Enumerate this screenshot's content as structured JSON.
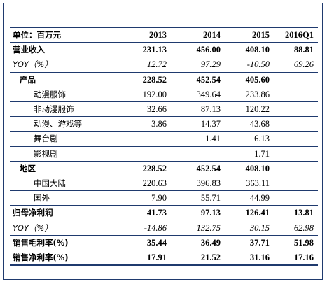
{
  "header": {
    "unit": "单位：百万元",
    "cols": [
      "2013",
      "2014",
      "2015",
      "2016Q1"
    ]
  },
  "rows": [
    {
      "label": "营业收入",
      "v": [
        "231.13",
        "456.00",
        "408.10",
        "88.81"
      ]
    },
    {
      "label": "YOY（%）",
      "v": [
        "12.72",
        "97.29",
        "-10.50",
        "69.26"
      ]
    },
    {
      "label": "产品",
      "v": [
        "228.52",
        "452.54",
        "405.60",
        ""
      ]
    },
    {
      "label": "动漫服饰",
      "v": [
        "192.00",
        "349.64",
        "233.86",
        ""
      ]
    },
    {
      "label": "非动漫服饰",
      "v": [
        "32.66",
        "87.13",
        "120.22",
        ""
      ]
    },
    {
      "label": "动漫、游戏等",
      "v": [
        "3.86",
        "14.37",
        "43.68",
        ""
      ]
    },
    {
      "label": "舞台剧",
      "v": [
        "",
        "1.41",
        "6.13",
        ""
      ]
    },
    {
      "label": "影视剧",
      "v": [
        "",
        "",
        "1.71",
        ""
      ]
    },
    {
      "label": "地区",
      "v": [
        "228.52",
        "452.54",
        "408.10",
        ""
      ]
    },
    {
      "label": "中国大陆",
      "v": [
        "220.63",
        "396.83",
        "363.11",
        ""
      ]
    },
    {
      "label": "国外",
      "v": [
        "7.90",
        "55.71",
        "44.99",
        ""
      ]
    },
    {
      "label": "归母净利润",
      "v": [
        "41.73",
        "97.13",
        "126.41",
        "13.81"
      ]
    },
    {
      "label": "YOY（%）",
      "v": [
        "-14.86",
        "132.75",
        "30.15",
        "62.98"
      ]
    },
    {
      "label": "销售毛利率(%)",
      "v": [
        "35.44",
        "36.49",
        "37.71",
        "51.98"
      ]
    },
    {
      "label": "销售净利率(%)",
      "v": [
        "17.91",
        "21.52",
        "31.16",
        "17.16"
      ]
    }
  ]
}
